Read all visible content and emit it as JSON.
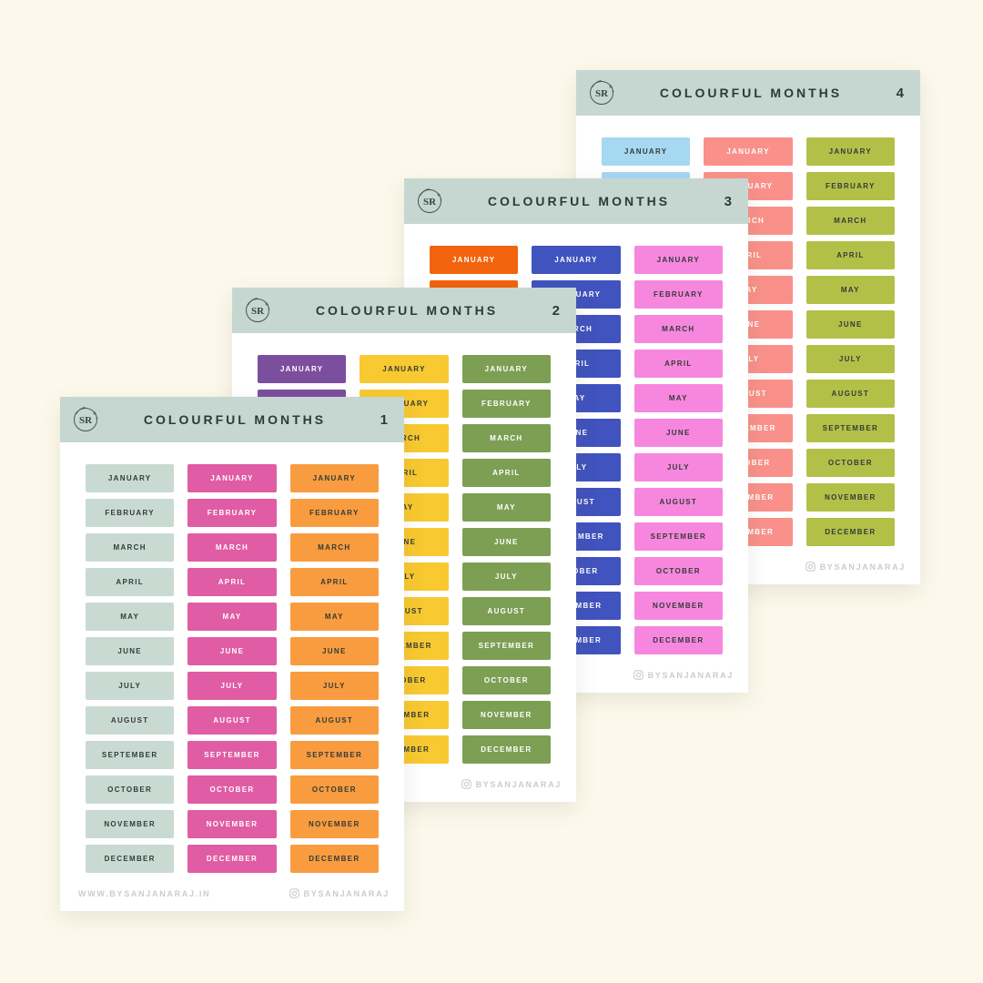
{
  "title": "COLOURFUL MONTHS",
  "logo_text": "SR",
  "colors": {
    "background": "#FCF9EC",
    "header": "#C6D7D1",
    "sheet": "#FFFFFF",
    "title_text": "#2E3A38",
    "footer_text": "#C7CECA",
    "dark_label": "#333B38",
    "light_label": "#FFFFFF"
  },
  "months": [
    "JANUARY",
    "FEBRUARY",
    "MARCH",
    "APRIL",
    "MAY",
    "JUNE",
    "JULY",
    "AUGUST",
    "SEPTEMBER",
    "OCTOBER",
    "NOVEMBER",
    "DECEMBER"
  ],
  "footer": {
    "website": "WWW.BYSANJANARAJ.IN",
    "instagram": "BYSANJANARAJ"
  },
  "sheets": [
    {
      "number": "1",
      "columns": [
        {
          "name": "sage",
          "bg": "#C9DAD3",
          "text": "#333B38"
        },
        {
          "name": "pink",
          "bg": "#E05CA4",
          "text": "#FFFFFF"
        },
        {
          "name": "orange",
          "bg": "#F99C3F",
          "text": "#333B38"
        }
      ]
    },
    {
      "number": "2",
      "columns": [
        {
          "name": "purple",
          "bg": "#7B4E9E",
          "text": "#FFFFFF"
        },
        {
          "name": "yellow",
          "bg": "#F8C930",
          "text": "#333B38"
        },
        {
          "name": "green",
          "bg": "#7C9F54",
          "text": "#FFFFFF"
        }
      ]
    },
    {
      "number": "3",
      "columns": [
        {
          "name": "orange-red",
          "bg": "#F2630D",
          "text": "#FFFFFF"
        },
        {
          "name": "royal-blue",
          "bg": "#4053BE",
          "text": "#FFFFFF"
        },
        {
          "name": "light-pink",
          "bg": "#F787DE",
          "text": "#333B38"
        }
      ]
    },
    {
      "number": "4",
      "columns": [
        {
          "name": "light-blue",
          "bg": "#A6D8F2",
          "text": "#333B38"
        },
        {
          "name": "salmon",
          "bg": "#F9918A",
          "text": "#FFFFFF"
        },
        {
          "name": "olive",
          "bg": "#B3C048",
          "text": "#333B38"
        }
      ]
    }
  ]
}
